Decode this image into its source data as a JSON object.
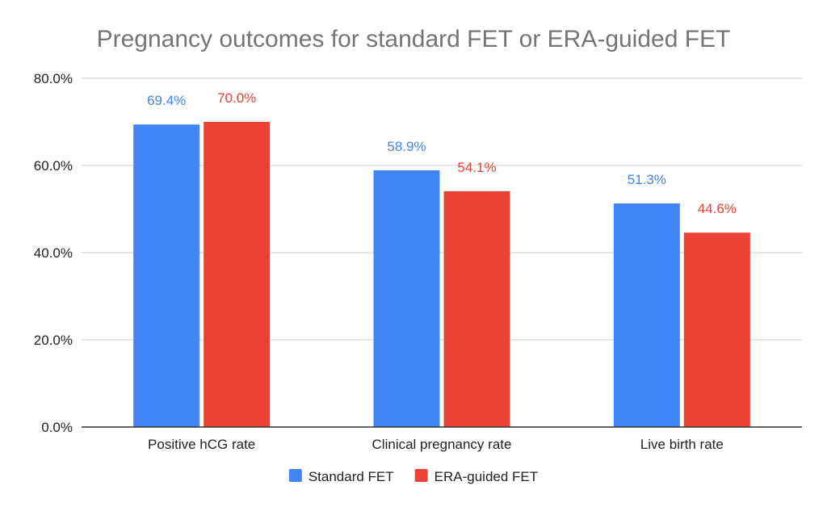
{
  "chart_data": {
    "type": "bar",
    "title": "Pregnancy outcomes for standard FET or ERA-guided FET",
    "xlabel": "",
    "ylabel": "",
    "categories": [
      "Positive hCG rate",
      "Clinical pregnancy rate",
      "Live birth rate"
    ],
    "series": [
      {
        "name": "Standard FET",
        "color": "#4285f4",
        "values": [
          69.4,
          58.9,
          51.3
        ],
        "labels": [
          "69.4%",
          "58.9%",
          "51.3%"
        ]
      },
      {
        "name": "ERA-guided FET",
        "color": "#ea4335",
        "values": [
          70.0,
          54.1,
          44.6
        ],
        "labels": [
          "70.0%",
          "54.1%",
          "44.6%"
        ]
      }
    ],
    "ylim": [
      0,
      80
    ],
    "yticks": [
      0,
      20,
      40,
      60,
      80
    ],
    "ytick_labels": [
      "0.0%",
      "20.0%",
      "40.0%",
      "60.0%",
      "80.0%"
    ],
    "grid": true,
    "legend_position": "bottom"
  }
}
